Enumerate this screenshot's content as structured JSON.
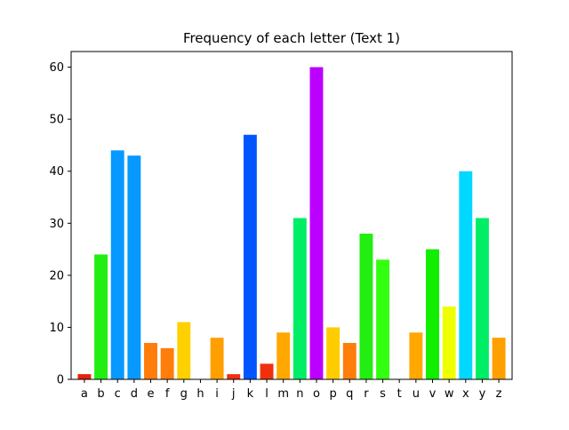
{
  "chart_data": {
    "type": "bar",
    "title": "Frequency of each letter (Text 1)",
    "xlabel": "",
    "ylabel": "",
    "ylim": [
      0,
      63
    ],
    "yticks": [
      0,
      10,
      20,
      30,
      40,
      50,
      60
    ],
    "grid": false,
    "categories": [
      "a",
      "b",
      "c",
      "d",
      "e",
      "f",
      "g",
      "h",
      "i",
      "j",
      "k",
      "l",
      "m",
      "n",
      "o",
      "p",
      "q",
      "r",
      "s",
      "t",
      "u",
      "v",
      "w",
      "x",
      "y",
      "z"
    ],
    "values": [
      1,
      24,
      44,
      43,
      7,
      6,
      11,
      0,
      8,
      1,
      47,
      3,
      9,
      31,
      60,
      10,
      7,
      28,
      23,
      0,
      9,
      25,
      14,
      40,
      31,
      8
    ],
    "colors": [
      "#e8200c",
      "#22ee11",
      "#0699ff",
      "#0699ff",
      "#ff7d0a",
      "#ff7d0a",
      "#ffd000",
      "#ff2200",
      "#ff9f00",
      "#f0300c",
      "#0055ff",
      "#f0300c",
      "#ffa800",
      "#00ee66",
      "#bb00ff",
      "#ffcc00",
      "#ff7d0a",
      "#22ee11",
      "#33ff11",
      "#ffffff",
      "#ffa800",
      "#11ee00",
      "#eeff00",
      "#00d8ff",
      "#00ee66",
      "#ff9f00"
    ]
  }
}
